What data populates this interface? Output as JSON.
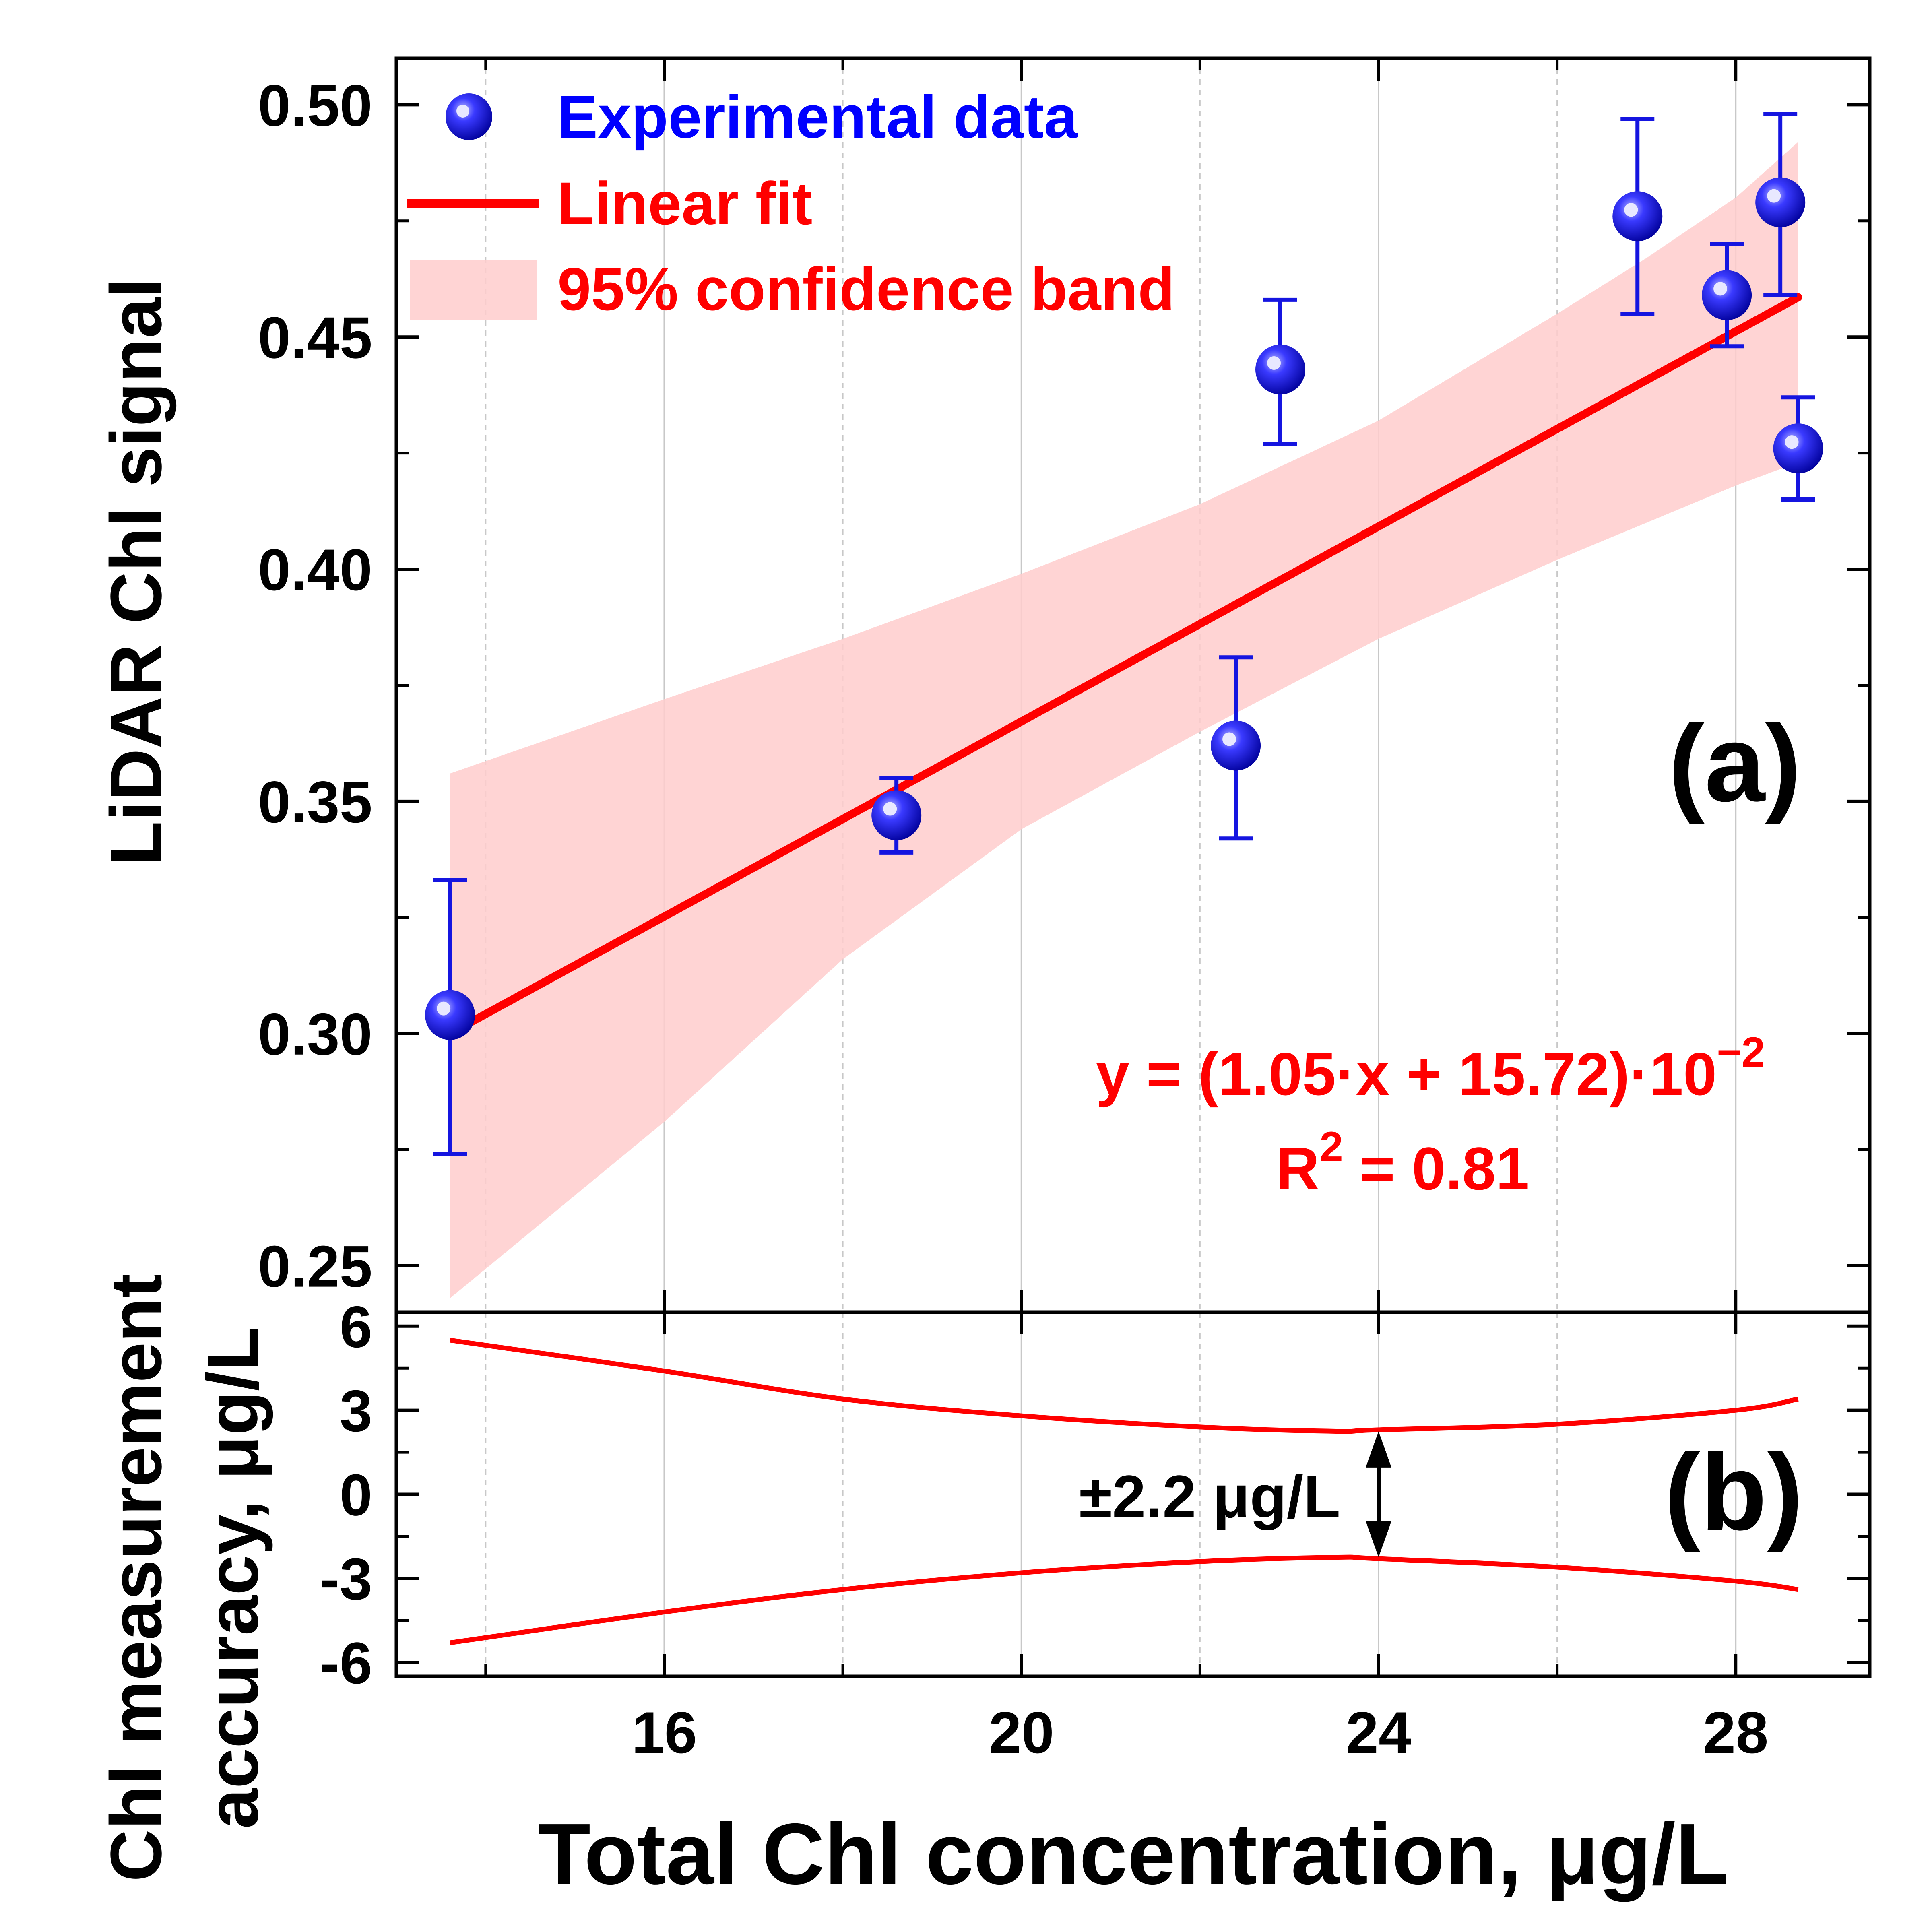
{
  "chart_data": [
    {
      "type": "scatter",
      "panel_label": "(a)",
      "ylabel": "LiDAR Chl signal",
      "xlim": [
        13,
        29.5
      ],
      "ylim": [
        0.24,
        0.51
      ],
      "yticks": [
        "0.25",
        "0.30",
        "0.35",
        "0.40",
        "0.45",
        "0.50"
      ],
      "ytick_values": [
        0.25,
        0.3,
        0.35,
        0.4,
        0.45,
        0.5
      ],
      "grid": true,
      "legend_position": "top-left",
      "legend": {
        "points": "Experimental data",
        "fit": "Linear fit",
        "band": "95% confidence band"
      },
      "series": [
        {
          "name": "Experimental data",
          "x": [
            13.6,
            18.6,
            22.4,
            22.9,
            26.9,
            27.9,
            28.5,
            28.7
          ],
          "y": [
            0.304,
            0.347,
            0.362,
            0.443,
            0.476,
            0.459,
            0.479,
            0.426
          ],
          "err_low": [
            0.274,
            0.339,
            0.342,
            0.427,
            0.455,
            0.448,
            0.459,
            0.415
          ],
          "err_high": [
            0.333,
            0.355,
            0.381,
            0.458,
            0.497,
            0.47,
            0.498,
            0.437
          ]
        },
        {
          "name": "Linear fit",
          "slope": 0.0105,
          "intercept": 0.1572,
          "x_range": [
            13.6,
            28.7
          ]
        },
        {
          "name": "95% confidence band",
          "x": [
            13.6,
            16,
            18,
            20,
            22,
            24,
            26,
            27,
            28,
            28.7
          ],
          "upper": [
            0.356,
            0.372,
            0.385,
            0.399,
            0.414,
            0.432,
            0.455,
            0.467,
            0.48,
            0.492
          ],
          "lower": [
            0.243,
            0.281,
            0.316,
            0.344,
            0.365,
            0.385,
            0.402,
            0.41,
            0.418,
            0.423
          ]
        }
      ],
      "annotations": {
        "equation": "y = (1.05·x + 15.72)·10",
        "equation_exponent": "−2",
        "r2_prefix": "R",
        "r2_exponent": "2",
        "r2_value": " = 0.81"
      }
    },
    {
      "type": "line",
      "panel_label": "(b)",
      "ylabel_line1": "Chl measurement",
      "ylabel_line2": "accuracy, μg/L",
      "xlabel": "Total Chl concentration, μg/L",
      "xlim": [
        13,
        29.5
      ],
      "ylim": [
        -6.5,
        6.5
      ],
      "xticks": [
        "16",
        "20",
        "24",
        "28"
      ],
      "xtick_values": [
        16,
        20,
        24,
        28
      ],
      "yticks": [
        "6",
        "3",
        "0",
        "-3",
        "-6"
      ],
      "ytick_values": [
        6,
        3,
        0,
        -3,
        -6
      ],
      "grid": true,
      "series": [
        {
          "name": "upper",
          "x": [
            13.6,
            16,
            18,
            20,
            22,
            23.5,
            24,
            26,
            28,
            28.7
          ],
          "y": [
            5.5,
            4.4,
            3.4,
            2.8,
            2.4,
            2.25,
            2.3,
            2.5,
            3.0,
            3.4
          ]
        },
        {
          "name": "lower",
          "x": [
            13.6,
            16,
            18,
            20,
            22,
            23.5,
            24,
            26,
            28,
            28.7
          ],
          "y": [
            -5.3,
            -4.2,
            -3.4,
            -2.8,
            -2.4,
            -2.25,
            -2.3,
            -2.6,
            -3.1,
            -3.4
          ]
        }
      ],
      "annotation": {
        "text": "±2.2 μg/L",
        "x": 24,
        "from": 2.25,
        "to": -2.25
      }
    }
  ]
}
